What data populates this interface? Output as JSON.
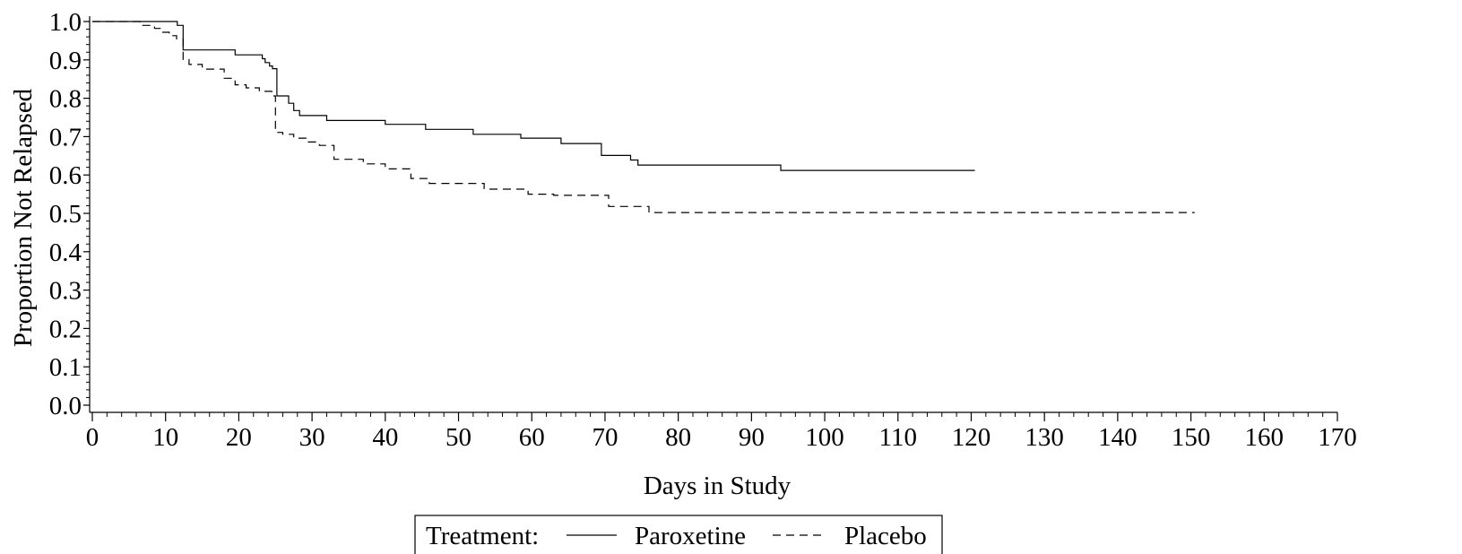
{
  "chart_data": {
    "type": "line",
    "title": "",
    "xlabel": "Days in Study",
    "ylabel": "Proportion Not Relapsed",
    "xlim": [
      0,
      170
    ],
    "ylim": [
      0.0,
      1.0
    ],
    "x_ticks": [
      "0",
      "10",
      "20",
      "30",
      "40",
      "50",
      "60",
      "70",
      "80",
      "90",
      "100",
      "110",
      "120",
      "130",
      "140",
      "150",
      "160",
      "170"
    ],
    "y_ticks": [
      "0.0",
      "0.1",
      "0.2",
      "0.3",
      "0.4",
      "0.5",
      "0.6",
      "0.7",
      "0.8",
      "0.9",
      "1.0"
    ],
    "grid": false,
    "legend": {
      "position": "bottom-center",
      "title": "Treatment:"
    },
    "series": [
      {
        "name": "Paroxetine",
        "style": "solid",
        "color": "#000000",
        "x": [
          0,
          11.1,
          11.6,
          12,
          12.4,
          16.3,
          19.5,
          23.2,
          23.6,
          24.2,
          24.6,
          24.9,
          25.2,
          25.6,
          26.0,
          26.8,
          27.5,
          28.3,
          32.0,
          36.5,
          40.0,
          45.5,
          52.0,
          58.5,
          64.0,
          69.5,
          71.0,
          72.0,
          73.5,
          74.5,
          76.0,
          84.5,
          93.5,
          94.0,
          120.5
        ],
        "values": [
          1.0,
          1.0,
          0.99,
          0.99,
          0.926,
          0.926,
          0.913,
          0.903,
          0.893,
          0.884,
          0.877,
          0.877,
          0.806,
          0.806,
          0.806,
          0.787,
          0.768,
          0.755,
          0.742,
          0.742,
          0.732,
          0.719,
          0.706,
          0.696,
          0.682,
          0.651,
          0.651,
          0.651,
          0.639,
          0.626,
          0.626,
          0.626,
          0.626,
          0.612,
          0.612
        ]
      },
      {
        "name": "Placebo",
        "style": "dashed",
        "color": "#000000",
        "x": [
          0,
          6.5,
          8.5,
          9.5,
          10.5,
          11.5,
          12.4,
          13.2,
          15.0,
          18.0,
          19.5,
          21.0,
          22.8,
          24.5,
          25.0,
          26.0,
          27.5,
          29.5,
          31.0,
          33.0,
          37.0,
          40.0,
          43.5,
          46.0,
          53.5,
          59.5,
          63.0,
          70.5,
          72.0,
          75.5,
          76.0,
          150.5
        ],
        "values": [
          1.0,
          0.99,
          0.982,
          0.972,
          0.963,
          0.955,
          0.901,
          0.888,
          0.876,
          0.852,
          0.835,
          0.827,
          0.818,
          0.806,
          0.711,
          0.706,
          0.696,
          0.686,
          0.677,
          0.641,
          0.629,
          0.616,
          0.591,
          0.578,
          0.563,
          0.55,
          0.547,
          0.518,
          0.518,
          0.518,
          0.502,
          0.502
        ]
      }
    ]
  }
}
